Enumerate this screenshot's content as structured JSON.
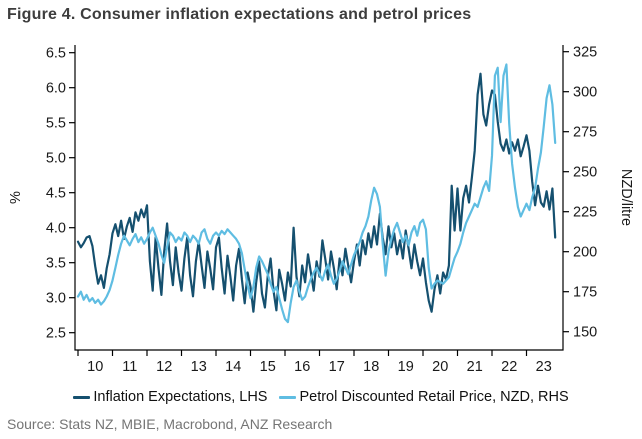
{
  "title": "Figure 4. Consumer inflation expectations and petrol prices",
  "source": "Source: Stats NZ, MBIE, Macrobond, ANZ Research",
  "colors": {
    "inflation_line": "#15506f",
    "petrol_line": "#5fbde2",
    "axis": "#000000",
    "title_text": "#3d3d3d",
    "source_text": "#757575"
  },
  "chart_data": {
    "type": "line",
    "title": "Figure 4. Consumer inflation expectations and petrol prices",
    "grid": false,
    "legend_position": "bottom",
    "x_start_year": 2010.0,
    "x_step_years": 0.0833333,
    "x_tick_years": [
      2010,
      2011,
      2012,
      2013,
      2014,
      2015,
      2016,
      2017,
      2018,
      2019,
      2020,
      2021,
      2022,
      2023
    ],
    "x_tick_labels": [
      "10",
      "11",
      "12",
      "13",
      "14",
      "15",
      "16",
      "17",
      "18",
      "19",
      "20",
      "21",
      "22",
      "23"
    ],
    "left_axis": {
      "label": "%",
      "ticks": [
        2.5,
        3.0,
        3.5,
        4.0,
        4.5,
        5.0,
        5.5,
        6.0,
        6.5
      ],
      "range": [
        2.5,
        6.5
      ]
    },
    "right_axis": {
      "label": "NZD/litre",
      "ticks": [
        150,
        175,
        200,
        225,
        250,
        275,
        300,
        325
      ],
      "range": [
        150,
        325
      ]
    },
    "series": [
      {
        "name": "Inflation Expectations, LHS",
        "axis": "left",
        "color": "#15506f",
        "values": [
          3.8,
          3.72,
          3.78,
          3.86,
          3.88,
          3.74,
          3.45,
          3.2,
          3.32,
          3.14,
          3.42,
          3.62,
          3.92,
          4.05,
          3.88,
          4.1,
          3.84,
          4.02,
          4.14,
          3.94,
          4.22,
          4.1,
          4.26,
          4.15,
          4.32,
          3.52,
          3.1,
          3.86,
          3.42,
          3.04,
          3.66,
          4.06,
          3.52,
          3.18,
          3.72,
          3.36,
          3.1,
          3.56,
          3.86,
          3.32,
          3.02,
          3.52,
          3.8,
          3.46,
          3.14,
          3.66,
          3.42,
          3.12,
          3.72,
          3.86,
          3.42,
          3.06,
          3.6,
          3.3,
          2.96,
          3.46,
          3.7,
          3.26,
          2.92,
          3.36,
          3.16,
          2.8,
          3.22,
          3.52,
          3.06,
          2.86,
          3.3,
          3.56,
          3.1,
          2.82,
          3.4,
          3.2,
          2.96,
          3.36,
          3.16,
          4.0,
          3.3,
          3.02,
          3.46,
          3.22,
          3.62,
          3.36,
          3.1,
          3.52,
          3.3,
          3.82,
          3.56,
          3.26,
          3.66,
          3.42,
          3.12,
          3.56,
          3.32,
          3.7,
          3.46,
          3.22,
          3.52,
          3.76,
          3.46,
          3.82,
          3.62,
          3.92,
          3.72,
          4.02,
          3.76,
          4.2,
          3.86,
          3.62,
          4.02,
          3.72,
          3.92,
          3.62,
          3.82,
          3.56,
          3.96,
          3.7,
          3.42,
          3.76,
          3.52,
          3.32,
          3.56,
          3.22,
          2.96,
          2.8,
          3.12,
          3.32,
          3.06,
          3.36,
          3.26,
          3.46,
          4.6,
          3.96,
          4.56,
          3.96,
          4.42,
          4.6,
          4.36,
          4.72,
          5.1,
          5.9,
          6.2,
          5.62,
          5.46,
          5.76,
          5.96,
          5.9,
          5.52,
          5.2,
          5.1,
          5.26,
          5.06,
          5.22,
          5.1,
          5.26,
          5.02,
          5.16,
          5.32,
          5.1,
          4.66,
          4.32,
          4.6,
          4.36,
          4.3,
          4.52,
          4.26,
          4.56,
          3.86
        ]
      },
      {
        "name": "Petrol Discounted Retail Price, NZD, RHS",
        "axis": "right",
        "color": "#5fbde2",
        "values": [
          172,
          175,
          170,
          173,
          169,
          171,
          168,
          170,
          167,
          169,
          172,
          176,
          182,
          190,
          198,
          205,
          210,
          207,
          204,
          208,
          211,
          206,
          209,
          205,
          208,
          212,
          215,
          210,
          205,
          198,
          193,
          203,
          212,
          210,
          206,
          209,
          207,
          212,
          210,
          206,
          210,
          208,
          205,
          212,
          214,
          208,
          205,
          210,
          212,
          210,
          213,
          211,
          214,
          212,
          210,
          208,
          205,
          199,
          189,
          179,
          171,
          178,
          190,
          197,
          194,
          190,
          186,
          180,
          175,
          178,
          171,
          164,
          158,
          156,
          168,
          178,
          182,
          175,
          170,
          172,
          178,
          183,
          187,
          190,
          186,
          182,
          188,
          192,
          185,
          180,
          183,
          188,
          194,
          190,
          186,
          192,
          198,
          202,
          206,
          212,
          216,
          222,
          232,
          240,
          236,
          228,
          205,
          185,
          200,
          208,
          214,
          218,
          212,
          206,
          210,
          204,
          212,
          216,
          210,
          218,
          220,
          214,
          190,
          177,
          180,
          182,
          181,
          180,
          182,
          184,
          190,
          196,
          200,
          205,
          212,
          218,
          222,
          226,
          230,
          228,
          234,
          240,
          244,
          238,
          260,
          310,
          315,
          281,
          310,
          317,
          280,
          255,
          240,
          228,
          222,
          226,
          230,
          226,
          234,
          240,
          252,
          262,
          278,
          296,
          304,
          292,
          268
        ]
      }
    ]
  },
  "legend": {
    "items": [
      {
        "label": "Inflation Expectations, LHS"
      },
      {
        "label": "Petrol Discounted Retail Price, NZD, RHS"
      }
    ]
  }
}
